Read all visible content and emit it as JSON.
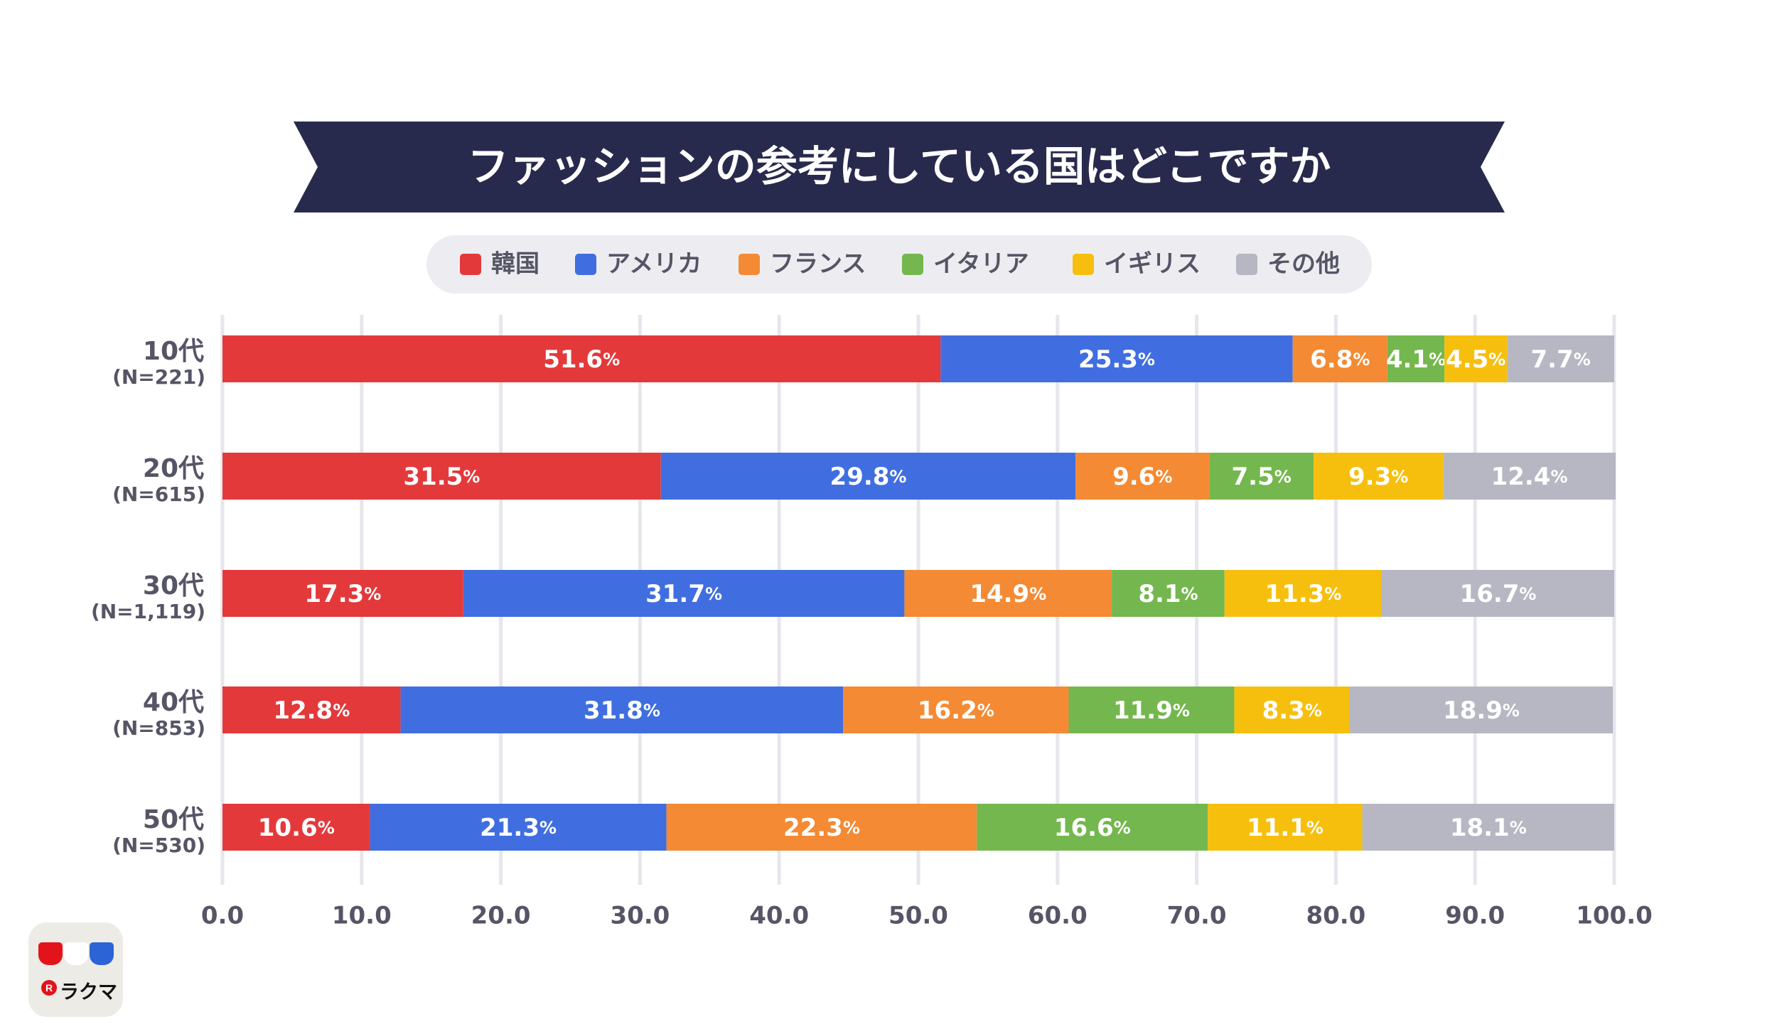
{
  "chart_data": {
    "type": "bar",
    "orientation": "horizontal",
    "stacked": true,
    "title": "ファッションの参考にしている国はどこですか",
    "categories": [
      "10代",
      "20代",
      "30代",
      "40代",
      "50代"
    ],
    "category_notes": [
      "(N=221)",
      "(N=615)",
      "(N=1,119)",
      "(N=853)",
      "(N=530)"
    ],
    "series": [
      {
        "name": "韓国",
        "color": "#e3393b",
        "values": [
          51.6,
          31.5,
          17.3,
          12.8,
          10.6
        ]
      },
      {
        "name": "アメリカ",
        "color": "#406ee0",
        "values": [
          25.3,
          29.8,
          31.7,
          31.8,
          21.3
        ]
      },
      {
        "name": "フランス",
        "color": "#f48a33",
        "values": [
          6.8,
          9.6,
          14.9,
          16.2,
          22.3
        ]
      },
      {
        "name": "イタリア",
        "color": "#74b74e",
        "values": [
          4.1,
          7.5,
          8.1,
          11.9,
          16.6
        ]
      },
      {
        "name": "イギリス",
        "color": "#f7bf0d",
        "values": [
          4.5,
          9.3,
          11.3,
          8.3,
          11.1
        ]
      },
      {
        "name": "その他",
        "color": "#b6b7c2",
        "values": [
          7.7,
          12.4,
          16.7,
          18.9,
          18.1
        ]
      }
    ],
    "value_suffix": "%",
    "xlim": [
      0,
      100
    ],
    "x_ticks": [
      "0.0",
      "10.0",
      "20.0",
      "30.0",
      "40.0",
      "50.0",
      "60.0",
      "70.0",
      "80.0",
      "90.0",
      "100.0"
    ],
    "grid": true,
    "legend_position": "top"
  },
  "colors": {
    "banner": "#282a4d",
    "text_dark": "#555566",
    "legend_bg": "#ededf1",
    "grid": "#e6e6ec"
  },
  "logo": {
    "mark": "R",
    "text": "ラクマ"
  }
}
